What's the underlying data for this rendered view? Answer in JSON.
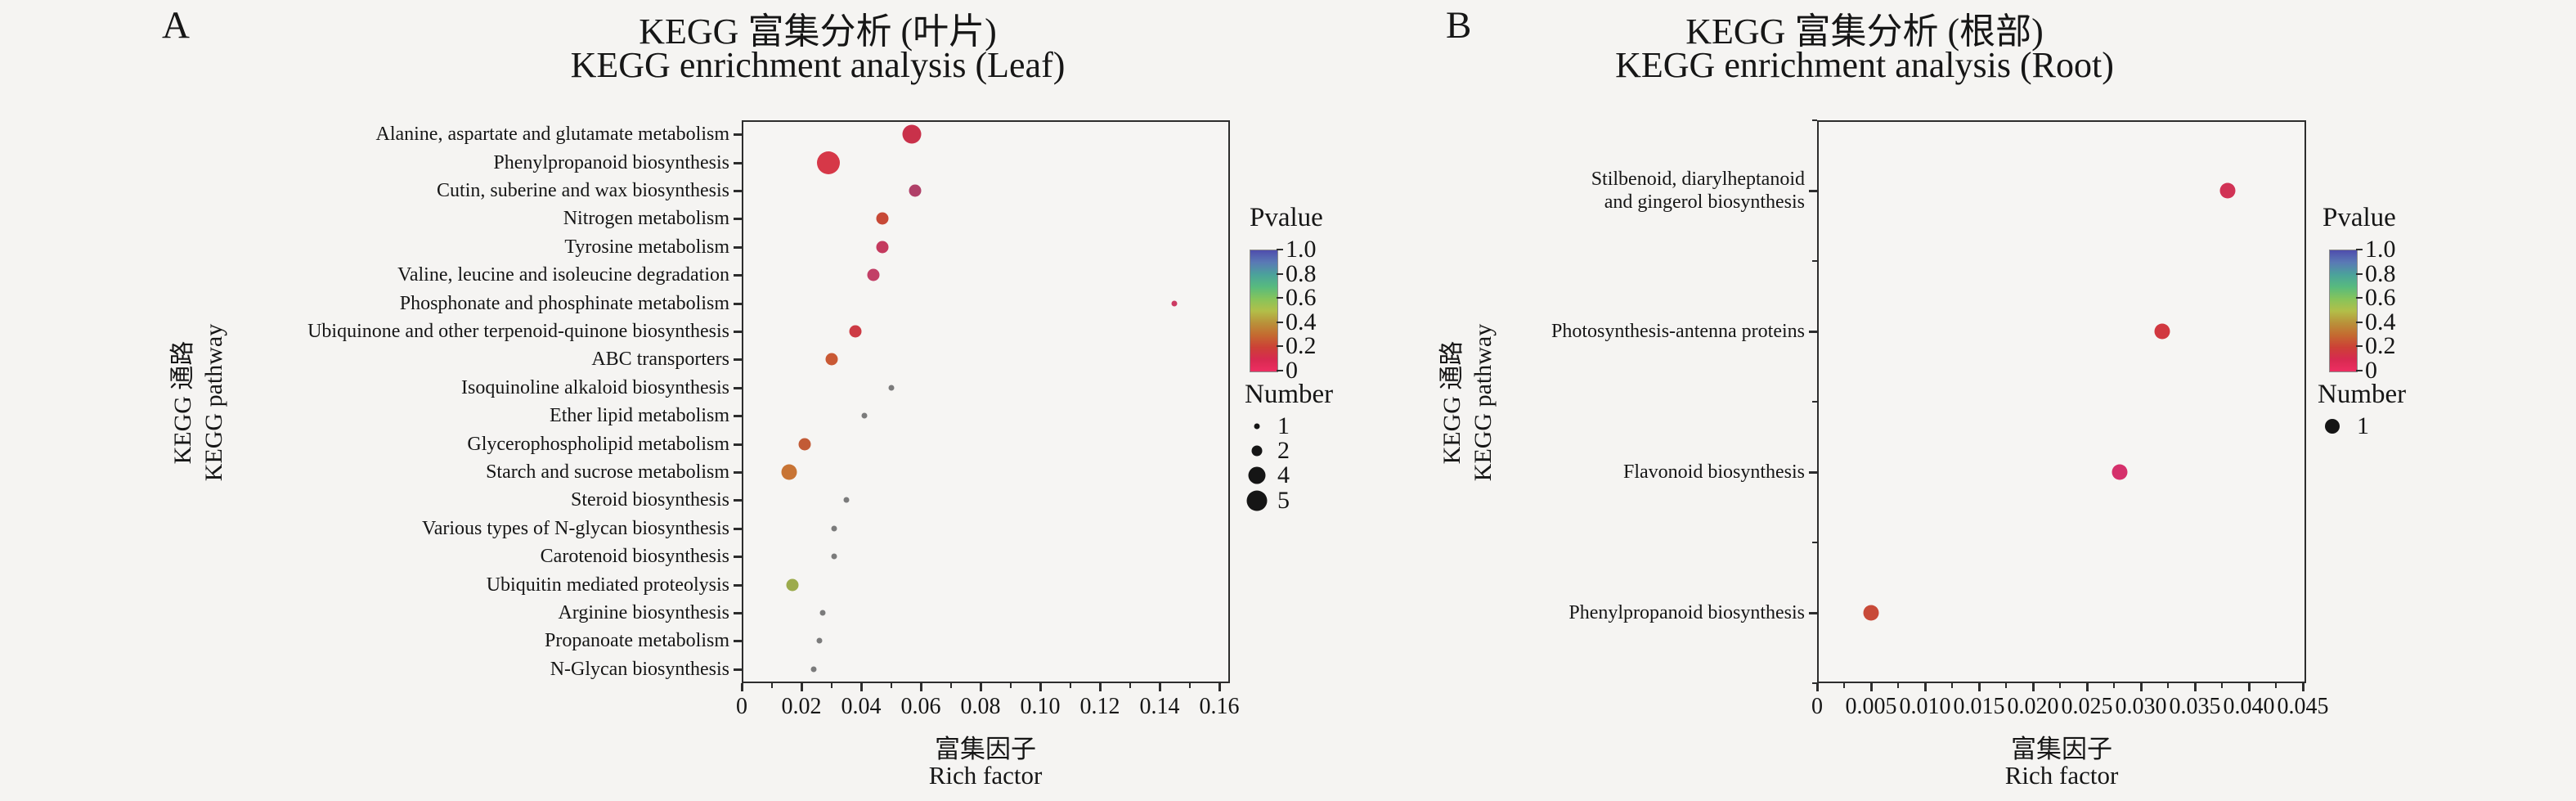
{
  "chart_data": [
    {
      "panel_letter": "A",
      "type": "scatter",
      "title_zh": "KEGG 富集分析 (叶片)",
      "title_en": "KEGG enrichment analysis (Leaf)",
      "xlabel_zh": "富集因子",
      "xlabel_en": "Rich factor",
      "ylabel_zh": "KEGG 通路",
      "ylabel_en": "KEGG pathway",
      "xlim": [
        0,
        0.1635
      ],
      "x_ticks": [
        0,
        0.02,
        0.04,
        0.06,
        0.08,
        0.1,
        0.12,
        0.14,
        0.16
      ],
      "x_tick_labels": [
        "0",
        "0.02",
        "0.04",
        "0.06",
        "0.08",
        "0.10",
        "0.12",
        "0.14",
        "0.16"
      ],
      "grid": false,
      "legend": {
        "pvalue_title": "Pvalue",
        "pvalue_tick_labels": [
          "1.0",
          "0.8",
          "0.6",
          "0.4",
          "0.2",
          "0"
        ],
        "colorbar_stops": [
          "#4f4dad",
          "#5a7ab5",
          "#4ba29b",
          "#57ba7e",
          "#86c45b",
          "#b2bf49",
          "#b9913a",
          "#c46a30",
          "#cc4136",
          "#d72a50",
          "#ee2e62"
        ],
        "number_title": "Number",
        "number_items": [
          {
            "label": "1",
            "d": 7
          },
          {
            "label": "2",
            "d": 13
          },
          {
            "label": "4",
            "d": 21
          },
          {
            "label": "5",
            "d": 25
          }
        ]
      },
      "size_scale": {
        "1": 7,
        "2": 15,
        "3": 19,
        "4": 23,
        "5": 28
      },
      "points": [
        {
          "pathway": "Alanine, aspartate and glutamate metabolism",
          "rich_factor": 0.057,
          "number": 4,
          "pvalue_approx": 0.02,
          "color": "#c9314a"
        },
        {
          "pathway": "Phenylpropanoid biosynthesis",
          "rich_factor": 0.029,
          "number": 5,
          "pvalue_approx": 0.02,
          "color": "#d63848"
        },
        {
          "pathway": "Cutin, suberine and wax biosynthesis",
          "rich_factor": 0.058,
          "number": 2,
          "pvalue_approx": 0.05,
          "color": "#b04068"
        },
        {
          "pathway": "Nitrogen metabolism",
          "rich_factor": 0.047,
          "number": 2,
          "pvalue_approx": 0.1,
          "color": "#c74936"
        },
        {
          "pathway": "Tyrosine metabolism",
          "rich_factor": 0.047,
          "number": 2,
          "pvalue_approx": 0.05,
          "color": "#c43a5e"
        },
        {
          "pathway": "Valine, leucine and isoleucine degradation",
          "rich_factor": 0.044,
          "number": 2,
          "pvalue_approx": 0.05,
          "color": "#c23f66"
        },
        {
          "pathway": "Phosphonate and phosphinate metabolism",
          "rich_factor": 0.145,
          "number": 1,
          "pvalue_approx": 0.05,
          "color": "#cc3a62"
        },
        {
          "pathway": "Ubiquinone and other terpenoid-quinone biosynthesis",
          "rich_factor": 0.038,
          "number": 2,
          "pvalue_approx": 0.05,
          "color": "#cd3b44"
        },
        {
          "pathway": "ABC transporters",
          "rich_factor": 0.03,
          "number": 2,
          "pvalue_approx": 0.15,
          "color": "#c95934"
        },
        {
          "pathway": "Isoquinoline alkaloid biosynthesis",
          "rich_factor": 0.05,
          "number": 1,
          "pvalue_approx": null,
          "color": "#7b7b7b"
        },
        {
          "pathway": "Ether lipid metabolism",
          "rich_factor": 0.041,
          "number": 1,
          "pvalue_approx": null,
          "color": "#7b7b7b"
        },
        {
          "pathway": "Glycerophospholipid metabolism",
          "rich_factor": 0.021,
          "number": 2,
          "pvalue_approx": 0.15,
          "color": "#c25b36"
        },
        {
          "pathway": "Starch and sucrose metabolism",
          "rich_factor": 0.016,
          "number": 3,
          "pvalue_approx": 0.2,
          "color": "#c87434"
        },
        {
          "pathway": "Steroid biosynthesis",
          "rich_factor": 0.035,
          "number": 1,
          "pvalue_approx": null,
          "color": "#7b7b7b"
        },
        {
          "pathway": "Various types of N-glycan biosynthesis",
          "rich_factor": 0.031,
          "number": 1,
          "pvalue_approx": null,
          "color": "#7b7b7b"
        },
        {
          "pathway": "Carotenoid biosynthesis",
          "rich_factor": 0.031,
          "number": 1,
          "pvalue_approx": null,
          "color": "#7b7b7b"
        },
        {
          "pathway": "Ubiquitin mediated proteolysis",
          "rich_factor": 0.017,
          "number": 2,
          "pvalue_approx": 0.4,
          "color": "#9cab4c"
        },
        {
          "pathway": "Arginine biosynthesis",
          "rich_factor": 0.027,
          "number": 1,
          "pvalue_approx": null,
          "color": "#7b7b7b"
        },
        {
          "pathway": "Propanoate metabolism",
          "rich_factor": 0.026,
          "number": 1,
          "pvalue_approx": null,
          "color": "#7b7b7b"
        },
        {
          "pathway": "N-Glycan biosynthesis",
          "rich_factor": 0.024,
          "number": 1,
          "pvalue_approx": null,
          "color": "#7b7b7b"
        }
      ]
    },
    {
      "panel_letter": "B",
      "type": "scatter",
      "title_zh": "KEGG 富集分析 (根部)",
      "title_en": "KEGG enrichment analysis (Root)",
      "xlabel_zh": "富集因子",
      "xlabel_en": "Rich factor",
      "ylabel_zh": "KEGG 通路",
      "ylabel_en": "KEGG pathway",
      "xlim": [
        0,
        0.0453
      ],
      "x_ticks": [
        0,
        0.005,
        0.01,
        0.015,
        0.02,
        0.025,
        0.03,
        0.035,
        0.04,
        0.045
      ],
      "x_tick_labels": [
        "0",
        "0.005",
        "0.010",
        "0.015",
        "0.020",
        "0.025",
        "0.030",
        "0.035",
        "0.040",
        "0.045"
      ],
      "grid": false,
      "legend": {
        "pvalue_title": "Pvalue",
        "pvalue_tick_labels": [
          "1.0",
          "0.8",
          "0.6",
          "0.4",
          "0.2",
          "0"
        ],
        "colorbar_stops": [
          "#4f4dad",
          "#5a7ab5",
          "#4ba29b",
          "#57ba7e",
          "#86c45b",
          "#b2bf49",
          "#b9913a",
          "#c46a30",
          "#cc4136",
          "#d72a50",
          "#ee2e62"
        ],
        "number_title": "Number",
        "number_items": [
          {
            "label": "1",
            "d": 18
          }
        ]
      },
      "size_scale": {
        "1": 19
      },
      "points": [
        {
          "pathway": "Stilbenoid, diarylheptanoid\nand gingerol biosynthesis",
          "rich_factor": 0.038,
          "number": 1,
          "pvalue_approx": 0.03,
          "color": "#d13355"
        },
        {
          "pathway": "Photosynthesis-antenna proteins",
          "rich_factor": 0.032,
          "number": 1,
          "pvalue_approx": 0.05,
          "color": "#d13840"
        },
        {
          "pathway": "Flavonoid biosynthesis",
          "rich_factor": 0.028,
          "number": 1,
          "pvalue_approx": 0.03,
          "color": "#d5306b"
        },
        {
          "pathway": "Phenylpropanoid biosynthesis",
          "rich_factor": 0.005,
          "number": 1,
          "pvalue_approx": 0.1,
          "color": "#c84a38"
        }
      ]
    }
  ]
}
